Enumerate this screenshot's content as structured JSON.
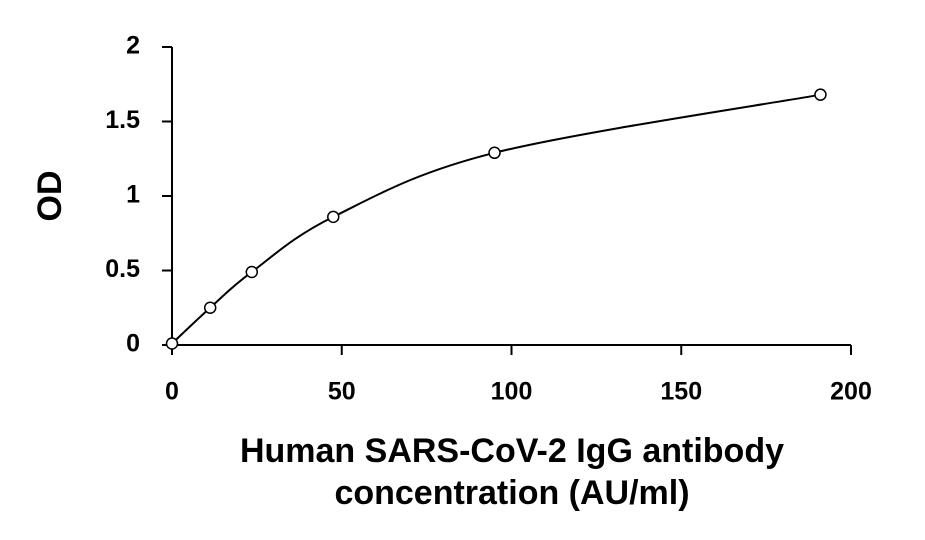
{
  "chart_data": {
    "type": "scatter",
    "x_label": "Human SARS-CoV-2 IgG antibody concentration (AU/ml)",
    "y_label": "OD",
    "x": [
      0,
      11.25,
      23.5,
      47.5,
      95,
      191
    ],
    "values": [
      0.01,
      0.25,
      0.49,
      0.86,
      1.29,
      1.68
    ],
    "color": "#000000",
    "xlim": [
      0,
      200
    ],
    "xticks": [
      0,
      50,
      100,
      150,
      200
    ],
    "ylim": [
      0,
      2
    ],
    "yticks": [
      0,
      0.5,
      1,
      1.5,
      2
    ],
    "grid": false
  }
}
